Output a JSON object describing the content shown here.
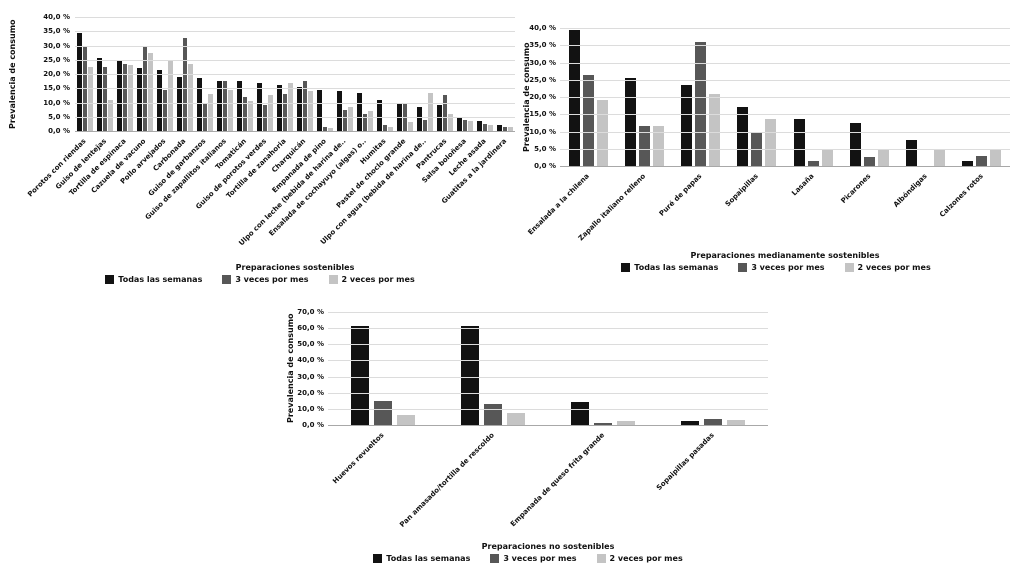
{
  "figure": {
    "background": "#ffffff"
  },
  "legend": {
    "items": [
      {
        "label": "Todas las semanas",
        "color": "#121212"
      },
      {
        "label": "3 veces por mes",
        "color": "#575757"
      },
      {
        "label": "2 veces por mes",
        "color": "#c4c4c4"
      }
    ]
  },
  "chart_data": [
    {
      "type": "bar",
      "title": "Preparaciones sostenibles",
      "ylabel": "Prevalencia de consumo",
      "xlabel": "",
      "ylim": [
        0,
        40
      ],
      "grid": true,
      "legend_position": "bottom",
      "ytick_labels": [
        "40,0 %",
        "35,0 %",
        "30,0 %",
        "25,0 %",
        "20,0 %",
        "15,0 %",
        "10,0 %",
        "5,0 %",
        "0,0 %"
      ],
      "categories": [
        "Porotos con riendas",
        "Guiso de lentejas",
        "Tortilla de espinaca",
        "Cazuela de vacuno",
        "Pollo arvejados",
        "Carbonada",
        "Guiso de garbanzos",
        "Guiso de zapallitos italianos",
        "Tomaticán",
        "Guiso de porotos verdes",
        "Tortilla de zanahoria",
        "Charquicán",
        "Empanada de pino",
        "Ulpo con leche (bebida de harina de..",
        "Ensalada de cochayuyo (algas) o..",
        "Humitas",
        "Pastel de choclo grande",
        "Ulpo con agua (bebida de harina de..",
        "Pantrucas",
        "Salsa boloñesa",
        "Leche asada",
        "Guatitas a la jardinera"
      ],
      "series": [
        {
          "name": "Todas las semanas",
          "values": [
            34.5,
            25.5,
            25,
            22,
            21.5,
            19,
            18.5,
            17.5,
            17.5,
            17,
            16,
            15.5,
            14.5,
            14,
            13.5,
            11,
            10,
            8.5,
            9,
            4.5,
            3.5,
            2
          ]
        },
        {
          "name": "3 veces por mes",
          "values": [
            30,
            22.5,
            23.5,
            29.5,
            14.5,
            32.5,
            9.5,
            17.5,
            12,
            9,
            13,
            17.5,
            1.5,
            7.5,
            6,
            2,
            9.5,
            4,
            12.5,
            4,
            2.5,
            1.5
          ]
        },
        {
          "name": "2 veces por mes",
          "values": [
            22.5,
            11,
            23,
            27.5,
            25,
            23.5,
            13,
            14.5,
            10.5,
            12.5,
            17,
            14,
            1,
            8.5,
            7,
            1.5,
            3,
            13.5,
            6,
            3.5,
            2,
            1.5
          ]
        }
      ]
    },
    {
      "type": "bar",
      "title": "Preparaciones medianamente sostenibles",
      "ylabel": "Prevalencia de consumo",
      "xlabel": "",
      "ylim": [
        0,
        40
      ],
      "grid": true,
      "legend_position": "bottom",
      "ytick_labels": [
        "40,0 %",
        "35,0 %",
        "30,0 %",
        "25,0 %",
        "20,0 %",
        "15,0 %",
        "10,0 %",
        "5,0 %",
        "0,0 %"
      ],
      "categories": [
        "Ensalada a la chilena",
        "Zapallo italiano relleno",
        "Puré de papas",
        "Sopaipillas",
        "Lasaña",
        "Picarones",
        "Albóndigas",
        "Calzones rotos"
      ],
      "series": [
        {
          "name": "Todas las semanas",
          "values": [
            39.5,
            25.5,
            23.5,
            17,
            13.5,
            12.5,
            7.5,
            1.5
          ]
        },
        {
          "name": "3 veces por mes",
          "values": [
            26.5,
            11.5,
            36,
            9.5,
            1.5,
            2.5,
            0,
            3
          ]
        },
        {
          "name": "2 veces por mes",
          "values": [
            19,
            11.5,
            21,
            13.5,
            5,
            4.5,
            5,
            4.5
          ]
        }
      ]
    },
    {
      "type": "bar",
      "title": "Preparaciones no sostenibles",
      "ylabel": "Prevalencia de consumo",
      "xlabel": "",
      "ylim": [
        0,
        70
      ],
      "grid": true,
      "legend_position": "bottom",
      "ytick_labels": [
        "70,0 %",
        "60,0 %",
        "50,0 %",
        "40,0 %",
        "30,0 %",
        "20,0 %",
        "10,0 %",
        "0,0 %"
      ],
      "categories": [
        "Huevos revueltos",
        "Pan amasado/tortilla de rescoldo",
        "Empanada de queso frita grande",
        "Sopaipillas pasadas"
      ],
      "series": [
        {
          "name": "Todas las semanas",
          "values": [
            61.5,
            61.5,
            14,
            2.5
          ]
        },
        {
          "name": "3 veces por mes",
          "values": [
            15,
            13,
            1.5,
            3.5
          ]
        },
        {
          "name": "2 veces por mes",
          "values": [
            6.5,
            7.5,
            2.5,
            3
          ]
        }
      ]
    }
  ]
}
